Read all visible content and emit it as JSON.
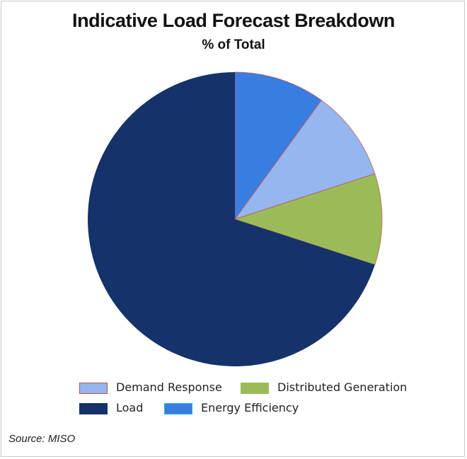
{
  "chart_data": {
    "type": "pie",
    "title": "Indicative Load Forecast Breakdown",
    "subtitle": "% of Total",
    "categories": [
      "Energy Efficiency",
      "Demand Response",
      "Distributed Generation",
      "Load"
    ],
    "values": [
      10,
      10,
      10,
      70
    ],
    "unit": "% of Total",
    "colors": {
      "Energy Efficiency": "#3a7de0",
      "Demand Response": "#95b6ee",
      "Distributed Generation": "#9bbb59",
      "Load": "#15326b"
    },
    "slice_border_color": "#c0504d",
    "legend": {
      "placement": "bottom",
      "entries": [
        {
          "label": "Demand Response",
          "color": "#95b6ee",
          "border": "#c0504d"
        },
        {
          "label": "Distributed Generation",
          "color": "#9bbb59",
          "border": "#9bbb59"
        },
        {
          "label": "Load",
          "color": "#15326b",
          "border": "#15326b"
        },
        {
          "label": "Energy Efficiency",
          "color": "#3a7de0",
          "border": "#1fb6e0"
        }
      ]
    }
  },
  "source": "Source: MISO"
}
